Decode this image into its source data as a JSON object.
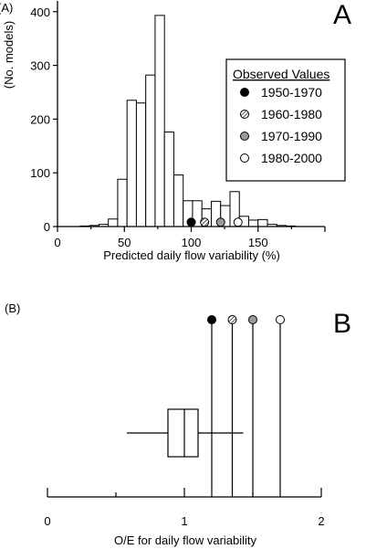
{
  "chart_data": [
    {
      "type": "bar",
      "panel_label": "(A)",
      "panel_letter": "A",
      "xlabel": "Predicted daily flow variability (%)",
      "ylabel": "(No. models)",
      "xlim": [
        0,
        200
      ],
      "ylim": [
        0,
        420
      ],
      "xticks": [
        0,
        50,
        100,
        150
      ],
      "yticks": [
        0,
        100,
        200,
        300,
        400
      ],
      "bin_width": 7,
      "bins": [
        {
          "start": 17,
          "value": 1
        },
        {
          "start": 24,
          "value": 2
        },
        {
          "start": 31,
          "value": 4
        },
        {
          "start": 38,
          "value": 14
        },
        {
          "start": 45,
          "value": 88
        },
        {
          "start": 52,
          "value": 235
        },
        {
          "start": 59,
          "value": 230
        },
        {
          "start": 66,
          "value": 282
        },
        {
          "start": 73,
          "value": 393
        },
        {
          "start": 80,
          "value": 176
        },
        {
          "start": 87,
          "value": 96
        },
        {
          "start": 94,
          "value": 48
        },
        {
          "start": 101,
          "value": 48
        },
        {
          "start": 108,
          "value": 33
        },
        {
          "start": 115,
          "value": 47
        },
        {
          "start": 122,
          "value": 39
        },
        {
          "start": 129,
          "value": 65
        },
        {
          "start": 136,
          "value": 19
        },
        {
          "start": 143,
          "value": 12
        },
        {
          "start": 150,
          "value": 13
        },
        {
          "start": 157,
          "value": 4
        },
        {
          "start": 164,
          "value": 2
        },
        {
          "start": 171,
          "value": 1
        }
      ],
      "legend": {
        "title": "Observed Values",
        "position": "right",
        "entries": [
          {
            "label": "1950-1970",
            "fill": "black"
          },
          {
            "label": "1960-1980",
            "fill": "hatched"
          },
          {
            "label": "1970-1990",
            "fill": "gray"
          },
          {
            "label": "1980-2000",
            "fill": "white"
          }
        ]
      },
      "observed_points": [
        {
          "label": "1950-1970",
          "x": 100,
          "y": 8
        },
        {
          "label": "1960-1980",
          "x": 110,
          "y": 8
        },
        {
          "label": "1970-1990",
          "x": 122,
          "y": 8
        },
        {
          "label": "1980-2000",
          "x": 135,
          "y": 8
        }
      ]
    },
    {
      "type": "box",
      "panel_label": "(B)",
      "panel_letter": "B",
      "xlabel": "O/E for daily flow variability",
      "xlim": [
        0,
        2
      ],
      "xticks": [
        0,
        1,
        2
      ],
      "box": {
        "whisker_low": 0.58,
        "q1": 0.88,
        "median": 1.0,
        "q3": 1.1,
        "whisker_high": 1.43
      },
      "observed_lines": [
        {
          "label": "1950-1970",
          "x": 1.2,
          "fill": "black"
        },
        {
          "label": "1960-1980",
          "x": 1.35,
          "fill": "hatched"
        },
        {
          "label": "1970-1990",
          "x": 1.5,
          "fill": "gray"
        },
        {
          "label": "1980-2000",
          "x": 1.7,
          "fill": "white"
        }
      ]
    }
  ],
  "colors": {
    "ink": "#000000",
    "gray_fill": "#9a9a9a",
    "paper": "#ffffff"
  }
}
